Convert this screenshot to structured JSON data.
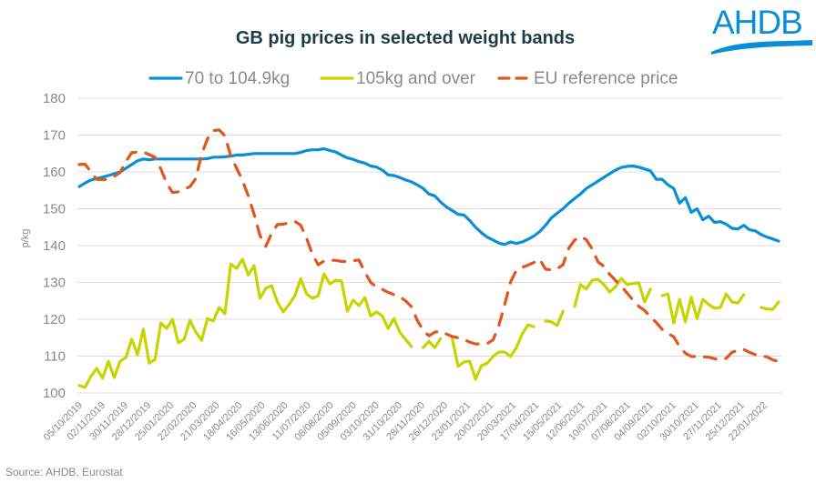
{
  "chart_data": {
    "type": "line",
    "title": "GB pig prices in selected weight bands",
    "xlabel": "",
    "ylabel": "p/kg",
    "ylim": [
      100,
      180
    ],
    "yticks": [
      100,
      110,
      120,
      130,
      140,
      150,
      160,
      170,
      180
    ],
    "grid": true,
    "legend_position": "top",
    "x_tick_labels": [
      "05/10/2019",
      "02/11/2019",
      "30/11/2019",
      "28/12/2019",
      "25/01/2020",
      "22/02/2020",
      "21/03/2020",
      "18/04/2020",
      "16/05/2020",
      "13/06/2020",
      "11/07/2020",
      "08/08/2020",
      "05/09/2020",
      "03/10/2020",
      "31/10/2020",
      "28/11/2020",
      "26/12/2020",
      "23/01/2021",
      "20/02/2021",
      "20/03/2021",
      "17/04/2021",
      "15/05/2021",
      "12/06/2021",
      "10/07/2021",
      "07/08/2021",
      "04/09/2021",
      "02/10/2021",
      "30/10/2021",
      "27/11/2021",
      "25/12/2021",
      "22/01/2022"
    ],
    "series": [
      {
        "name": "70 to 104.9kg",
        "color": "#0a8fd6",
        "style": "solid",
        "values": [
          156,
          157,
          157.8,
          158.2,
          158.6,
          159,
          159.5,
          160,
          161,
          162,
          163,
          163.5,
          163.3,
          163.5,
          163.5,
          163.5,
          163.5,
          163.5,
          163.5,
          163.5,
          163.5,
          163.5,
          163.6,
          164,
          164,
          164.1,
          164.3,
          164.6,
          164.6,
          164.8,
          165,
          165,
          165,
          165,
          165,
          165,
          165,
          165,
          165.3,
          165.8,
          166,
          166,
          166.3,
          165.8,
          165.4,
          164.6,
          163.8,
          163.4,
          162.8,
          162.4,
          161.6,
          161.3,
          160.5,
          159.2,
          159,
          158.5,
          157.8,
          157.3,
          156.5,
          155.5,
          154,
          153.5,
          151.8,
          150.5,
          149.5,
          148.5,
          148.3,
          146.8,
          145,
          143.5,
          142.3,
          141.5,
          140.7,
          140.3,
          141,
          140.6,
          141,
          141.7,
          142.6,
          143.8,
          145.5,
          147.5,
          148.8,
          150,
          151.5,
          152.8,
          154,
          155.5,
          156.5,
          157.5,
          158.5,
          159.5,
          160.5,
          161.2,
          161.5,
          161.6,
          161.3,
          160.8,
          160.3,
          158,
          158,
          156.5,
          155.5,
          151.5,
          153,
          149,
          150,
          147,
          148,
          146.3,
          146.5,
          145.8,
          144.7,
          144.5,
          145.5,
          144.3,
          144,
          143,
          142.3,
          141.8,
          141.2
        ]
      },
      {
        "name": "105kg and over",
        "color": "#c8d400",
        "style": "solid",
        "values": [
          102,
          101.5,
          104.5,
          106.7,
          104,
          108.6,
          104.2,
          108.6,
          109.6,
          114.6,
          110.4,
          117.3,
          108.1,
          109.1,
          119,
          117.5,
          120,
          113.6,
          114.6,
          119.7,
          116.5,
          114.3,
          120.2,
          119.5,
          123.2,
          121.5,
          135,
          133.8,
          136.3,
          132,
          134.6,
          125.7,
          128.4,
          129.1,
          124.7,
          122,
          124,
          126.4,
          131,
          126.9,
          125.7,
          126.4,
          132.3,
          129.6,
          130.6,
          130.4,
          122.2,
          125.2,
          123.7,
          125.9,
          120.9,
          122,
          120.9,
          117.5,
          120.2,
          116.5,
          114.5,
          112.6,
          null,
          112.3,
          114,
          112.3,
          114.8,
          null,
          114.8,
          107.2,
          108.4,
          108.6,
          103.7,
          107.4,
          108.1,
          109.9,
          111.1,
          111.1,
          109.9,
          112.3,
          116,
          118.5,
          118,
          null,
          119.5,
          119.3,
          118.3,
          122.2,
          null,
          123.5,
          129.4,
          128.2,
          130.6,
          130.9,
          129.4,
          127.4,
          128.8,
          131.1,
          129.4,
          129.7,
          129.9,
          124.7,
          128.2,
          null,
          126.4,
          126.9,
          119,
          125.4,
          119.3,
          126,
          120.2,
          125.4,
          124,
          123,
          123.2,
          126.9,
          124.7,
          124.4,
          126.7,
          null,
          null,
          123.2,
          122.8,
          122.7,
          124.7
        ]
      },
      {
        "name": "EU reference price",
        "color": "#e0561c",
        "style": "dashed",
        "values": [
          162,
          162.1,
          160,
          158,
          157.9,
          158,
          158.8,
          159.8,
          162.8,
          165.2,
          165.4,
          165.4,
          164.7,
          164,
          160.8,
          157,
          154.4,
          154.6,
          155.3,
          156,
          158.2,
          164.8,
          169,
          171.2,
          171.4,
          169.8,
          164.3,
          161,
          157.7,
          153.5,
          148.5,
          142.8,
          139.8,
          143.3,
          145.7,
          145.8,
          146.2,
          146.6,
          145.5,
          142,
          137.6,
          134.8,
          135.8,
          136,
          136,
          135.7,
          135.7,
          135.9,
          136.1,
          132.8,
          130,
          128.8,
          128.1,
          127.3,
          126.7,
          126.1,
          125,
          123.4,
          119.7,
          117,
          115.5,
          116.5,
          116.8,
          116,
          115.3,
          115,
          114.5,
          113.8,
          113.3,
          113.3,
          113.4,
          114.4,
          118.3,
          124,
          130.1,
          133.3,
          134.1,
          134.7,
          135.4,
          136.3,
          133.6,
          133.4,
          133.7,
          134.8,
          139.3,
          141.5,
          142.5,
          141.6,
          139.1,
          135.6,
          134.4,
          132.2,
          130.6,
          129,
          127.1,
          125.2,
          123.5,
          122.4,
          120.6,
          119.1,
          117.3,
          116.2,
          115.2,
          112.6,
          110.8,
          109.9,
          109.9,
          109.8,
          109.7,
          109.3,
          108.9,
          109.4,
          111,
          111.6,
          111.8,
          111,
          110.4,
          110.1,
          109.8,
          109,
          108.5
        ]
      }
    ]
  },
  "source": "Source:  AHDB, Eurostat",
  "logo": {
    "text": "AHDB",
    "color": "#0a8fd6"
  }
}
